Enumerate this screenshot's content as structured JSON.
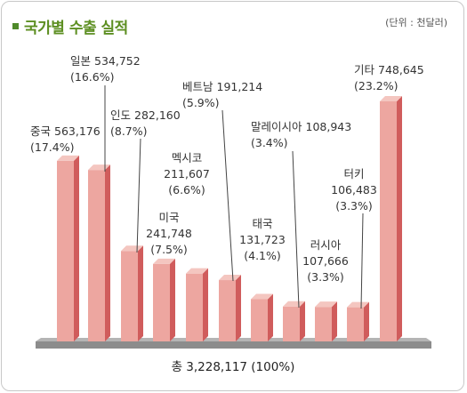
{
  "title": "국가별 수출 실적",
  "unit": "(단위 : 천달러)",
  "total_label": "총 3,228,117 (100%)",
  "colors": {
    "bar_front": "#eda6a0",
    "bar_side": "#d05c5c",
    "bar_top": "#f4c6c0",
    "base": "#8c8c8c",
    "title": "#5d8f22",
    "leader": "#444444"
  },
  "chart_data": {
    "type": "bar",
    "title": "국가별 수출 실적",
    "unit": "천달러",
    "categories": [
      "중국",
      "일본",
      "인도",
      "미국",
      "멕시코",
      "베트남",
      "태국",
      "말레이시아",
      "러시아",
      "터키",
      "기타"
    ],
    "values": [
      563176,
      534752,
      282160,
      241748,
      211607,
      191214,
      131723,
      108943,
      107666,
      106483,
      748645
    ],
    "value_labels": [
      "563,176",
      "534,752",
      "282,160",
      "241,748",
      "211,607",
      "191,214",
      "131,723",
      "108,943",
      "107,666",
      "106,483",
      "748,645"
    ],
    "percent_labels": [
      "(17.4%)",
      "(16.6%)",
      "(8.7%)",
      "(7.5%)",
      "(6.6%)",
      "(5.9%)",
      "(4.1%)",
      "(3.4%)",
      "(3.3%)",
      "(3.3%)",
      "(23.2%)"
    ],
    "total": "총 3,228,117 (100%)"
  }
}
